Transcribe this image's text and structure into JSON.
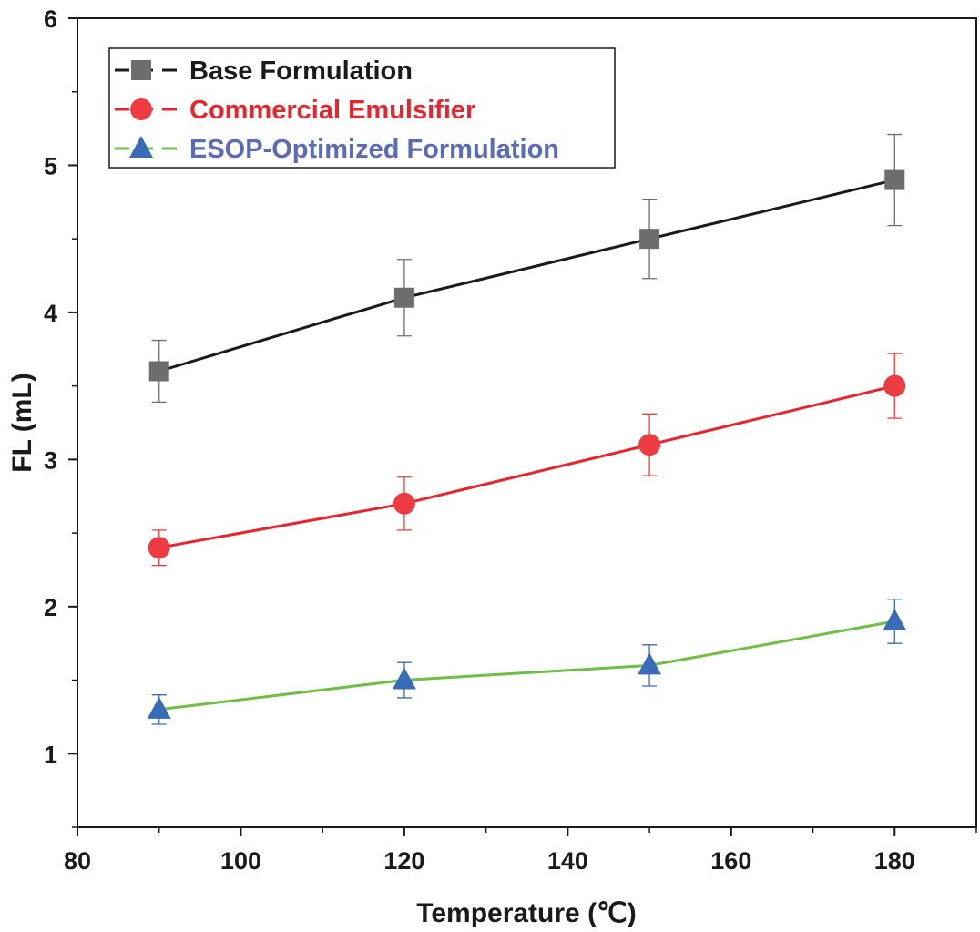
{
  "chart_data": {
    "type": "line",
    "title": "",
    "xlabel": "Temperature (℃)",
    "ylabel": "FL (mL)",
    "xlim": [
      80,
      190
    ],
    "ylim": [
      0.5,
      6
    ],
    "x_ticks": [
      80,
      100,
      120,
      140,
      160,
      180
    ],
    "x_tick_labels": [
      "80",
      "100",
      "120",
      "140",
      "160",
      "180"
    ],
    "y_ticks": [
      1,
      2,
      3,
      4,
      5,
      6
    ],
    "y_tick_labels": [
      "1",
      "2",
      "3",
      "4",
      "5",
      "6"
    ],
    "grid": false,
    "legend_position": "top-left",
    "series": [
      {
        "name": "Base Formulation",
        "marker": "square",
        "line_color": "#1a1a1a",
        "marker_color": "#6d6d6d",
        "label_color": "#1a1a1a",
        "x": [
          90,
          120,
          150,
          180
        ],
        "values": [
          3.6,
          4.1,
          4.5,
          4.9
        ],
        "errors": [
          0.21,
          0.26,
          0.27,
          0.31
        ]
      },
      {
        "name": "Commercial Emulsifier",
        "marker": "circle",
        "line_color": "#e8252c",
        "marker_color": "#ee3b42",
        "label_color": "#e8252c",
        "x": [
          90,
          120,
          150,
          180
        ],
        "values": [
          2.4,
          2.7,
          3.1,
          3.5
        ],
        "errors": [
          0.12,
          0.18,
          0.21,
          0.22
        ]
      },
      {
        "name": "ESOP-Optimized Formulation",
        "marker": "triangle",
        "line_color": "#6fbf44",
        "marker_color": "#3a6bb6",
        "label_color": "#5b6bb5",
        "x": [
          90,
          120,
          150,
          180
        ],
        "values": [
          1.3,
          1.5,
          1.6,
          1.9
        ],
        "errors": [
          0.1,
          0.12,
          0.14,
          0.15
        ]
      }
    ]
  }
}
